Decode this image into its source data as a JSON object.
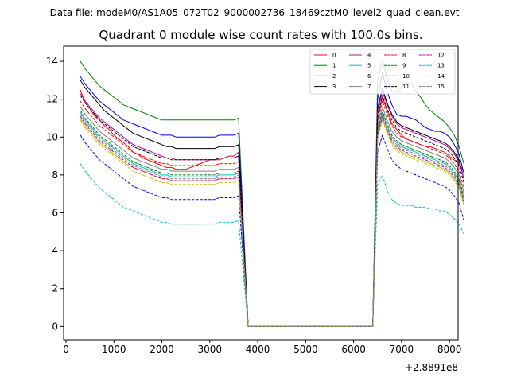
{
  "figure": {
    "suptitle": "Data file: modeM0/AS1A05_072T02_9000002736_18469cztM0_level2_quad_clean.evt",
    "title": "Quadrant 0 module wise count rates with 100.0s bins.",
    "x_offset_label": "+2.8891e8"
  },
  "chart_data": {
    "type": "line",
    "title": "Quadrant 0 module wise count rates with 100.0s bins.",
    "xlabel": "",
    "ylabel": "",
    "xlim": [
      -50,
      8180
    ],
    "ylim": [
      -0.7,
      14.8
    ],
    "xticks": [
      0,
      1000,
      2000,
      3000,
      4000,
      5000,
      6000,
      7000,
      8000
    ],
    "yticks": [
      0,
      2,
      4,
      6,
      8,
      10,
      12,
      14
    ],
    "xtick_labels": [
      "0",
      "1000",
      "2000",
      "3000",
      "4000",
      "5000",
      "6000",
      "7000",
      "8000"
    ],
    "ytick_labels": [
      "0",
      "2",
      "4",
      "6",
      "8",
      "10",
      "12",
      "14"
    ],
    "x_offset": "+2.8891e8",
    "bin_width_s": 100,
    "gap": [
      3800,
      6400
    ],
    "legend_location": "upper right",
    "series": [
      {
        "name": "0",
        "color": "#ff0000",
        "style": "solid",
        "seg1": [
          12.5,
          11.8,
          11.5,
          11.1,
          10.9,
          10.6,
          10.4,
          10.1,
          9.9,
          9.7,
          9.5,
          9.2,
          9.1,
          8.9,
          8.8,
          8.7,
          8.6,
          8.5,
          8.4,
          8.4,
          8.3,
          8.3,
          8.3,
          8.4,
          8.5,
          8.6,
          8.7,
          8.8,
          8.8,
          8.8,
          8.9,
          9.0,
          9.0,
          9.2
        ],
        "seg2": [
          10.9,
          12.1,
          11.4,
          10.7,
          10.4,
          10.1,
          9.9,
          9.8,
          9.7,
          9.6,
          9.5,
          9.5,
          9.4,
          9.3,
          9.2,
          9.0,
          8.8,
          8.6,
          8.2
        ]
      },
      {
        "name": "1",
        "color": "#008000",
        "style": "solid",
        "seg1": [
          14.0,
          13.6,
          13.3,
          13.0,
          12.7,
          12.5,
          12.3,
          12.1,
          11.9,
          11.7,
          11.6,
          11.5,
          11.4,
          11.3,
          11.2,
          11.1,
          11.0,
          10.9,
          10.9,
          10.9,
          10.9,
          10.9,
          10.9,
          10.9,
          10.9,
          10.9,
          10.9,
          10.9,
          10.9,
          10.9,
          10.9,
          10.9,
          10.9,
          11.0
        ],
        "seg2": [
          13.0,
          14.0,
          13.1,
          12.4,
          12.4,
          12.6,
          12.9,
          12.8,
          12.4,
          12.1,
          11.7,
          11.4,
          11.2,
          11.0,
          10.8,
          10.5,
          10.1,
          9.5,
          8.6
        ]
      },
      {
        "name": "2",
        "color": "#0000ff",
        "style": "solid",
        "seg1": [
          13.2,
          12.8,
          12.5,
          12.2,
          11.9,
          11.7,
          11.5,
          11.3,
          11.1,
          10.9,
          10.8,
          10.7,
          10.6,
          10.5,
          10.4,
          10.3,
          10.2,
          10.1,
          10.1,
          10.1,
          10.0,
          10.0,
          10.0,
          10.0,
          10.0,
          10.0,
          10.0,
          10.0,
          10.0,
          10.1,
          10.1,
          10.1,
          10.1,
          10.2
        ],
        "seg2": [
          12.0,
          13.4,
          12.4,
          11.7,
          11.2,
          11.1,
          11.1,
          11.0,
          10.9,
          10.7,
          10.5,
          10.4,
          10.3,
          10.3,
          10.2,
          10.0,
          9.6,
          9.1,
          8.1
        ]
      },
      {
        "name": "3",
        "color": "#000000",
        "style": "solid",
        "seg1": [
          13.0,
          12.6,
          12.3,
          12.0,
          11.7,
          11.4,
          11.2,
          11.0,
          10.8,
          10.6,
          10.4,
          10.2,
          10.1,
          10.0,
          9.9,
          9.8,
          9.7,
          9.6,
          9.5,
          9.5,
          9.4,
          9.4,
          9.4,
          9.4,
          9.4,
          9.4,
          9.4,
          9.4,
          9.4,
          9.5,
          9.5,
          9.5,
          9.5,
          9.6
        ],
        "seg2": [
          11.5,
          12.6,
          11.8,
          11.2,
          10.8,
          10.6,
          10.5,
          10.4,
          10.3,
          10.2,
          10.1,
          10.0,
          9.9,
          9.8,
          9.7,
          9.5,
          9.2,
          8.8,
          7.8
        ]
      },
      {
        "name": "4",
        "color": "#bf00bf",
        "style": "solid",
        "seg1": [
          12.3,
          11.9,
          11.6,
          11.3,
          11.0,
          10.8,
          10.6,
          10.4,
          10.2,
          10.0,
          9.8,
          9.6,
          9.5,
          9.4,
          9.3,
          9.2,
          9.1,
          9.0,
          8.9,
          8.9,
          8.8,
          8.8,
          8.8,
          8.8,
          8.8,
          8.8,
          8.8,
          8.8,
          8.8,
          8.9,
          8.9,
          8.9,
          8.9,
          9.0
        ],
        "seg2": [
          11.3,
          12.4,
          11.7,
          11.1,
          10.7,
          10.5,
          10.4,
          10.3,
          10.2,
          10.1,
          10.0,
          9.9,
          9.8,
          9.7,
          9.6,
          9.4,
          9.1,
          8.7,
          7.8
        ]
      },
      {
        "name": "5",
        "color": "#00bfbf",
        "style": "solid",
        "seg1": [
          11.3,
          10.9,
          10.6,
          10.3,
          10.0,
          9.8,
          9.6,
          9.4,
          9.2,
          9.0,
          8.8,
          8.6,
          8.5,
          8.4,
          8.3,
          8.2,
          8.1,
          8.0,
          8.0,
          7.9,
          7.9,
          7.9,
          7.9,
          7.9,
          7.9,
          7.9,
          7.9,
          7.9,
          7.9,
          8.0,
          8.0,
          8.0,
          8.0,
          8.1
        ],
        "seg2": [
          10.3,
          11.3,
          10.6,
          10.0,
          9.7,
          9.5,
          9.4,
          9.3,
          9.2,
          9.1,
          9.0,
          8.9,
          8.8,
          8.7,
          8.6,
          8.4,
          8.1,
          7.7,
          6.8
        ]
      },
      {
        "name": "6",
        "color": "#bfbf00",
        "style": "solid",
        "seg1": [
          11.0,
          10.6,
          10.3,
          10.0,
          9.7,
          9.5,
          9.3,
          9.1,
          8.9,
          8.7,
          8.5,
          8.4,
          8.3,
          8.2,
          8.1,
          8.0,
          7.9,
          7.8,
          7.8,
          7.7,
          7.7,
          7.7,
          7.7,
          7.7,
          7.7,
          7.7,
          7.7,
          7.7,
          7.7,
          7.8,
          7.8,
          7.8,
          7.8,
          7.9
        ],
        "seg2": [
          10.0,
          11.0,
          10.3,
          9.7,
          9.4,
          9.2,
          9.1,
          9.0,
          8.9,
          8.8,
          8.7,
          8.6,
          8.5,
          8.4,
          8.3,
          8.1,
          7.8,
          7.4,
          6.5
        ]
      },
      {
        "name": "7",
        "color": "#808080",
        "style": "solid",
        "seg1": [
          11.6,
          11.2,
          10.9,
          10.6,
          10.3,
          10.1,
          9.9,
          9.7,
          9.5,
          9.3,
          9.1,
          8.9,
          8.8,
          8.7,
          8.6,
          8.5,
          8.4,
          8.3,
          8.3,
          8.2,
          8.2,
          8.2,
          8.2,
          8.2,
          8.2,
          8.2,
          8.2,
          8.2,
          8.2,
          8.3,
          8.3,
          8.3,
          8.3,
          8.4
        ],
        "seg2": [
          10.6,
          11.6,
          10.9,
          10.3,
          10.0,
          9.8,
          9.7,
          9.6,
          9.5,
          9.4,
          9.3,
          9.2,
          9.1,
          9.0,
          8.9,
          8.7,
          8.4,
          8.0,
          7.1
        ]
      },
      {
        "name": "8",
        "color": "#ff0000",
        "style": "dashed",
        "seg1": [
          11.9,
          11.5,
          11.2,
          10.9,
          10.6,
          10.4,
          10.2,
          10.0,
          9.8,
          9.6,
          9.4,
          9.2,
          9.1,
          9.0,
          8.9,
          8.8,
          8.7,
          8.6,
          8.6,
          8.5,
          8.5,
          8.5,
          8.5,
          8.5,
          8.5,
          8.5,
          8.5,
          8.5,
          8.5,
          8.6,
          8.6,
          8.6,
          8.6,
          8.7
        ],
        "seg2": [
          10.8,
          11.9,
          11.2,
          10.6,
          10.2,
          10.0,
          9.9,
          9.8,
          9.7,
          9.6,
          9.5,
          9.4,
          9.3,
          9.2,
          9.1,
          8.9,
          8.6,
          8.2,
          7.3
        ]
      },
      {
        "name": "9",
        "color": "#008000",
        "style": "dashed",
        "seg1": [
          11.4,
          11.0,
          10.7,
          10.4,
          10.1,
          9.9,
          9.7,
          9.5,
          9.3,
          9.1,
          8.9,
          8.7,
          8.6,
          8.5,
          8.4,
          8.3,
          8.2,
          8.1,
          8.1,
          8.0,
          8.0,
          8.0,
          8.0,
          8.0,
          8.0,
          8.0,
          8.0,
          8.0,
          8.0,
          8.1,
          8.1,
          8.1,
          8.1,
          8.2
        ],
        "seg2": [
          10.4,
          11.4,
          10.7,
          10.1,
          9.8,
          9.6,
          9.5,
          9.4,
          9.3,
          9.2,
          9.1,
          9.0,
          8.9,
          8.8,
          8.7,
          8.5,
          8.2,
          7.8,
          6.9
        ]
      },
      {
        "name": "10",
        "color": "#0000ff",
        "style": "dashed",
        "seg1": [
          10.1,
          9.7,
          9.4,
          9.1,
          8.8,
          8.6,
          8.4,
          8.2,
          8.0,
          7.8,
          7.6,
          7.4,
          7.3,
          7.2,
          7.1,
          7.0,
          6.9,
          6.8,
          6.8,
          6.7,
          6.7,
          6.7,
          6.7,
          6.7,
          6.7,
          6.7,
          6.7,
          6.7,
          6.7,
          6.8,
          6.8,
          6.8,
          6.8,
          6.9
        ],
        "seg2": [
          9.2,
          10.1,
          9.4,
          8.8,
          8.5,
          8.3,
          8.2,
          8.1,
          8.0,
          7.9,
          7.8,
          7.7,
          7.6,
          7.5,
          7.4,
          7.2,
          6.9,
          6.5,
          5.6
        ]
      },
      {
        "name": "11",
        "color": "#000000",
        "style": "dashed",
        "seg1": [
          12.2,
          11.8,
          11.5,
          11.2,
          10.9,
          10.7,
          10.5,
          10.3,
          10.1,
          9.9,
          9.7,
          9.5,
          9.4,
          9.3,
          9.2,
          9.1,
          9.0,
          8.9,
          8.9,
          8.8,
          8.8,
          8.8,
          8.8,
          8.8,
          8.8,
          8.8,
          8.8,
          8.8,
          8.8,
          8.9,
          8.9,
          8.9,
          8.9,
          9.0
        ],
        "seg2": [
          11.1,
          12.2,
          11.5,
          10.9,
          10.5,
          10.3,
          10.2,
          10.1,
          10.0,
          9.9,
          9.8,
          9.7,
          9.6,
          9.5,
          9.4,
          9.2,
          8.9,
          8.5,
          7.6
        ]
      },
      {
        "name": "12",
        "color": "#bf00bf",
        "style": "dashed",
        "seg1": [
          11.1,
          10.7,
          10.4,
          10.1,
          9.8,
          9.6,
          9.4,
          9.2,
          9.0,
          8.8,
          8.6,
          8.4,
          8.3,
          8.2,
          8.1,
          8.0,
          7.9,
          7.8,
          7.8,
          7.7,
          7.7,
          7.7,
          7.7,
          7.7,
          7.7,
          7.7,
          7.7,
          7.7,
          7.7,
          7.8,
          7.8,
          7.8,
          7.8,
          7.9
        ],
        "seg2": [
          10.1,
          11.1,
          10.4,
          9.8,
          9.5,
          9.3,
          9.2,
          9.1,
          9.0,
          8.9,
          8.8,
          8.7,
          8.6,
          8.5,
          8.4,
          8.2,
          7.9,
          7.5,
          6.6
        ]
      },
      {
        "name": "13",
        "color": "#00bfbf",
        "style": "dashed",
        "seg1": [
          8.6,
          8.2,
          7.9,
          7.6,
          7.3,
          7.1,
          6.9,
          6.7,
          6.5,
          6.3,
          6.2,
          6.1,
          6.0,
          5.9,
          5.8,
          5.7,
          5.6,
          5.5,
          5.5,
          5.4,
          5.4,
          5.4,
          5.4,
          5.4,
          5.4,
          5.4,
          5.4,
          5.4,
          5.4,
          5.5,
          5.5,
          5.5,
          5.5,
          5.6
        ],
        "seg2": [
          7.5,
          8.0,
          7.2,
          6.7,
          6.5,
          6.4,
          6.4,
          6.4,
          6.3,
          6.3,
          6.3,
          6.2,
          6.2,
          6.1,
          6.1,
          5.9,
          5.7,
          5.4,
          4.9
        ]
      },
      {
        "name": "14",
        "color": "#bfbf00",
        "style": "dashed",
        "seg1": [
          10.9,
          10.5,
          10.2,
          9.9,
          9.6,
          9.4,
          9.2,
          9.0,
          8.8,
          8.6,
          8.4,
          8.2,
          8.1,
          8.0,
          7.9,
          7.8,
          7.7,
          7.6,
          7.6,
          7.5,
          7.5,
          7.5,
          7.5,
          7.5,
          7.5,
          7.5,
          7.5,
          7.5,
          7.5,
          7.6,
          7.6,
          7.6,
          7.6,
          7.7
        ],
        "seg2": [
          9.9,
          10.9,
          10.2,
          9.6,
          9.3,
          9.1,
          9.0,
          8.9,
          8.8,
          8.7,
          8.6,
          8.5,
          8.4,
          8.3,
          8.2,
          8.0,
          7.7,
          7.3,
          6.4
        ]
      },
      {
        "name": "15",
        "color": "#808080",
        "style": "dashed",
        "seg1": [
          11.2,
          10.8,
          10.5,
          10.2,
          9.9,
          9.7,
          9.5,
          9.3,
          9.1,
          8.9,
          8.7,
          8.5,
          8.4,
          8.3,
          8.2,
          8.1,
          8.0,
          7.9,
          7.9,
          7.8,
          7.8,
          7.8,
          7.8,
          7.8,
          7.8,
          7.8,
          7.8,
          7.8,
          7.8,
          7.9,
          7.9,
          7.9,
          7.9,
          8.0
        ],
        "seg2": [
          10.2,
          11.2,
          10.5,
          9.9,
          9.6,
          9.4,
          9.3,
          9.2,
          9.1,
          9.0,
          8.9,
          8.8,
          8.7,
          8.6,
          8.5,
          8.3,
          8.0,
          7.6,
          6.7
        ]
      }
    ]
  }
}
